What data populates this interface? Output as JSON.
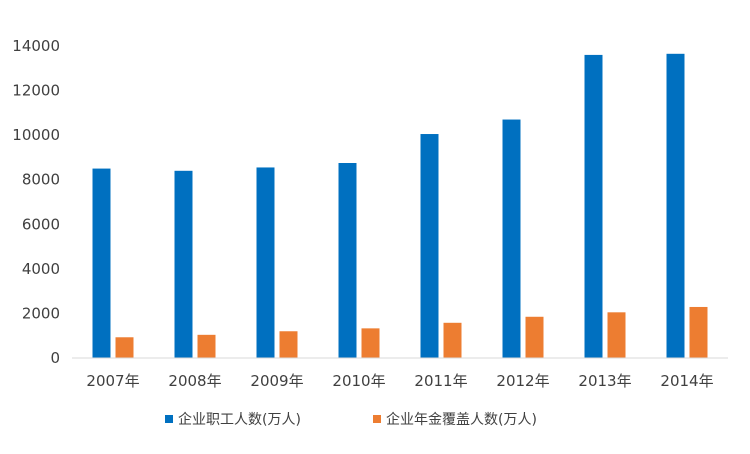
{
  "chart_data": {
    "type": "bar",
    "categories": [
      "2007年",
      "2008年",
      "2009年",
      "2010年",
      "2011年",
      "2012年",
      "2013年",
      "2014年"
    ],
    "series": [
      {
        "name": "企业职工人数(万人)",
        "color": "#0070C0",
        "values": [
          8500,
          8400,
          8550,
          8750,
          10050,
          10700,
          13600,
          13650
        ]
      },
      {
        "name": "企业年金覆盖人数(万人)",
        "color": "#ED7D31",
        "values": [
          930,
          1040,
          1200,
          1330,
          1580,
          1850,
          2050,
          2290
        ]
      }
    ],
    "y_ticks": [
      "0",
      "2000",
      "4000",
      "6000",
      "8000",
      "10000",
      "12000",
      "14000"
    ],
    "ylim": [
      0,
      14000
    ],
    "grid": false,
    "legend_position": "bottom"
  }
}
